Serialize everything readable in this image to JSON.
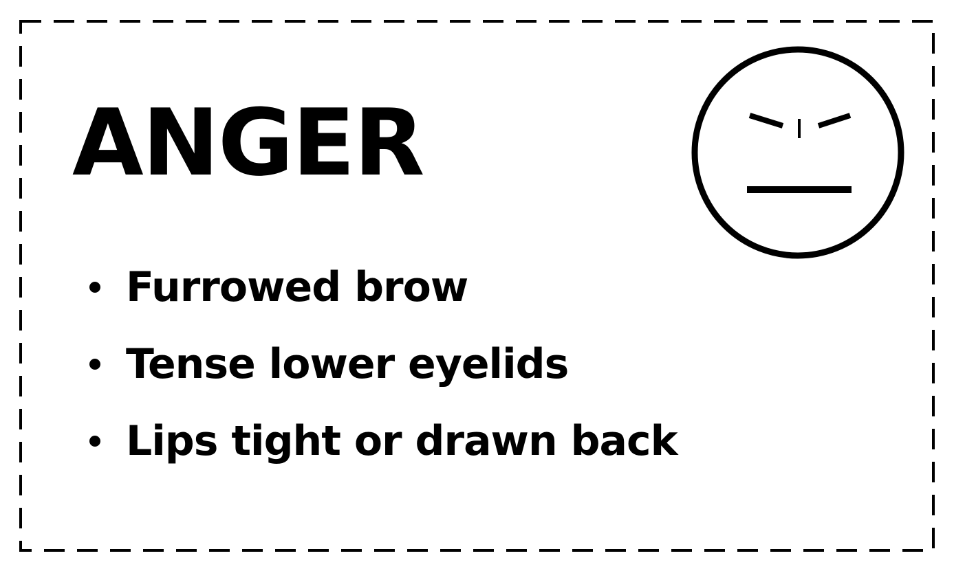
{
  "card": {
    "title": "ANGER",
    "face_icon": "angry-face-icon",
    "bullets": [
      {
        "label": "Furrowed brow"
      },
      {
        "label": "Tense lower eyelids"
      },
      {
        "label": "Lips tight or drawn back"
      }
    ]
  },
  "colors": {
    "background": "#ffffff",
    "ink": "#000000"
  }
}
